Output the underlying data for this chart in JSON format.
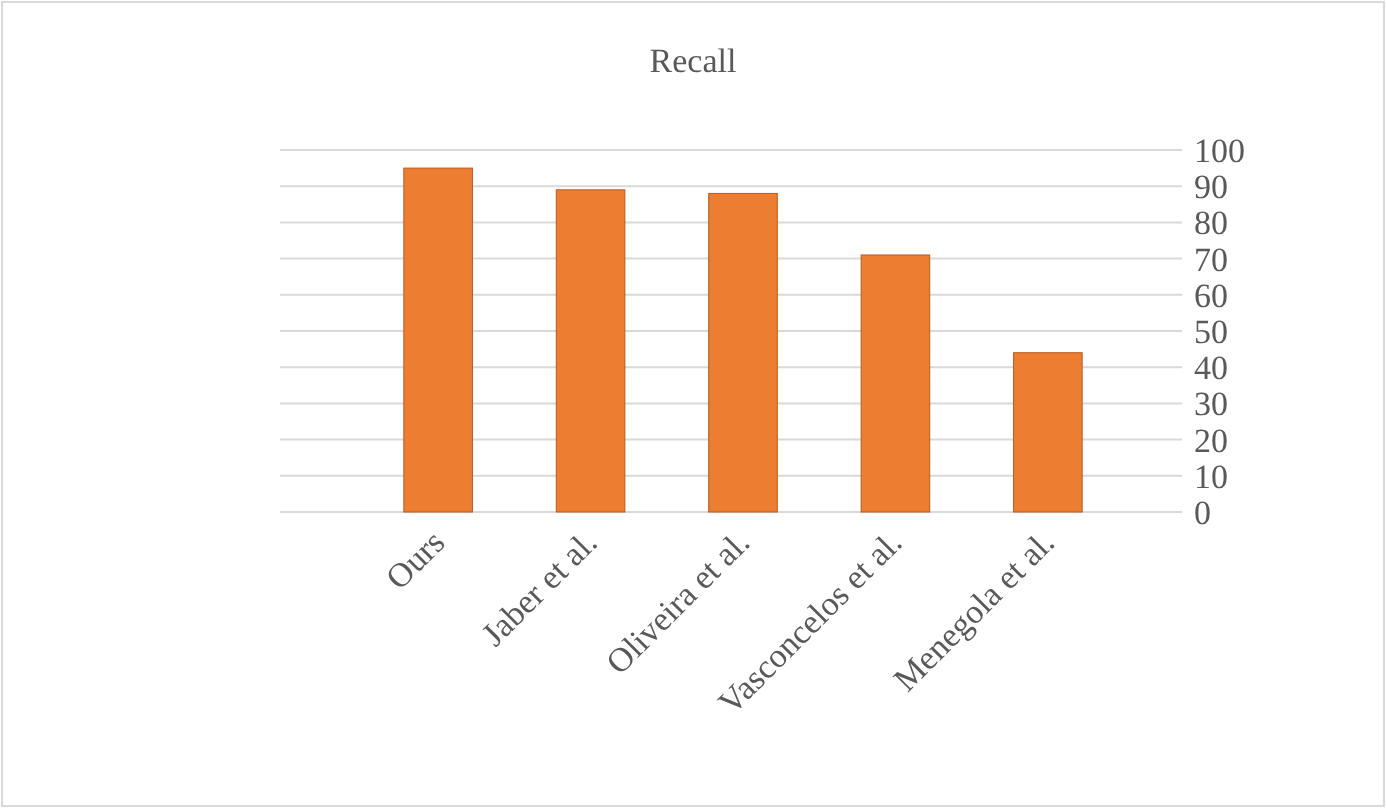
{
  "chart_data": {
    "type": "bar",
    "title": "Recall",
    "categories": [
      "Ours",
      "Jaber et al.",
      "Oliveira et al.",
      "Vasconcelos et al.",
      "Menegola et al."
    ],
    "values": [
      95,
      89,
      88,
      71,
      44
    ],
    "color": "#ed7d31",
    "ylim": [
      0,
      100
    ],
    "yticks": [
      0,
      10,
      20,
      30,
      40,
      50,
      60,
      70,
      80,
      90,
      100
    ],
    "grid": "y"
  }
}
